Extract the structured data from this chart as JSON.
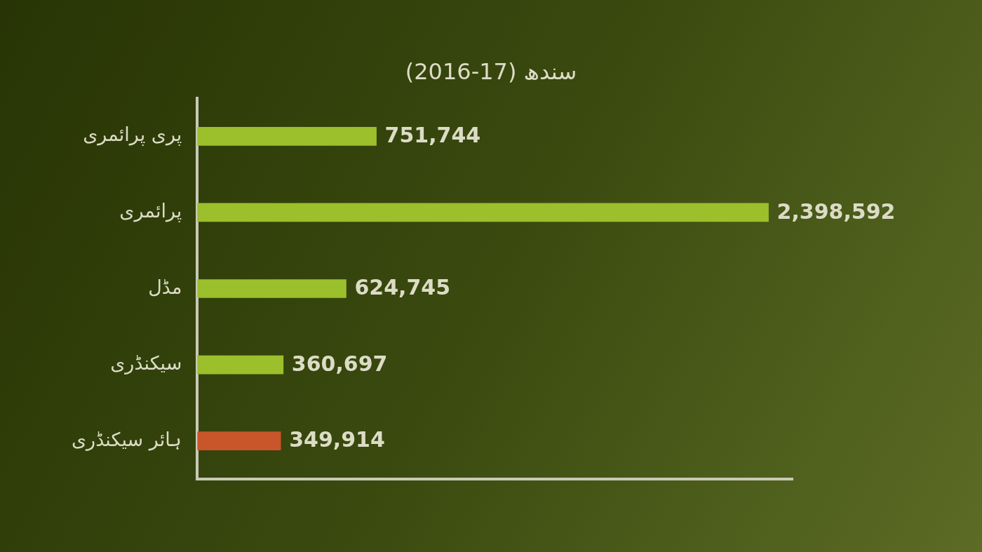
{
  "chart_data": {
    "type": "bar",
    "orientation": "horizontal",
    "title": "سندھ (2016-17)",
    "categories": [
      "پری پرائمری",
      "پرائمری",
      "مڈل",
      "سیکنڈری",
      "ہائر سیکنڈری"
    ],
    "values": [
      751744,
      2398592,
      624745,
      360697,
      349914
    ],
    "value_labels": [
      "751,744",
      "2,398,592",
      "624,745",
      "360,697",
      "349,914"
    ],
    "colors": [
      "#9cbf2c",
      "#9cbf2c",
      "#9cbf2c",
      "#9cbf2c",
      "#c9552b"
    ],
    "grid": false,
    "legend": false,
    "tick_labels": "y"
  }
}
